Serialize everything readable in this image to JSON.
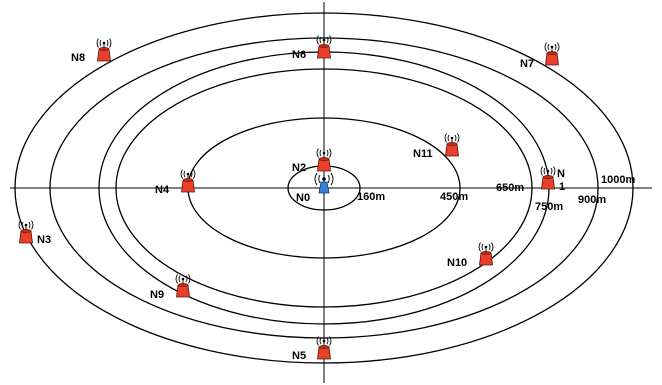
{
  "colors": {
    "node": "#e8402a",
    "base_station": "#3a7fd6",
    "lines": "#000000"
  },
  "icons": {
    "node": "radio-tower-icon",
    "base_station": "antenna-icon"
  },
  "rings": [
    {
      "label": "160m"
    },
    {
      "label": "450m"
    },
    {
      "label": "650m"
    },
    {
      "label": "750m"
    },
    {
      "label": "900m"
    },
    {
      "label": "1000m"
    }
  ],
  "base_station": {
    "label": "N0"
  },
  "nodes": [
    {
      "id": "N1",
      "label_top": "N",
      "label_bottom": "1"
    },
    {
      "id": "N2",
      "label": "N2"
    },
    {
      "id": "N3",
      "label": "N3"
    },
    {
      "id": "N4",
      "label": "N4"
    },
    {
      "id": "N5",
      "label": "N5"
    },
    {
      "id": "N6",
      "label": "N6"
    },
    {
      "id": "N7",
      "label": "N7"
    },
    {
      "id": "N8",
      "label": "N8"
    },
    {
      "id": "N9",
      "label": "N9"
    },
    {
      "id": "N10",
      "label": "N10"
    },
    {
      "id": "N11",
      "label": "N11"
    }
  ]
}
